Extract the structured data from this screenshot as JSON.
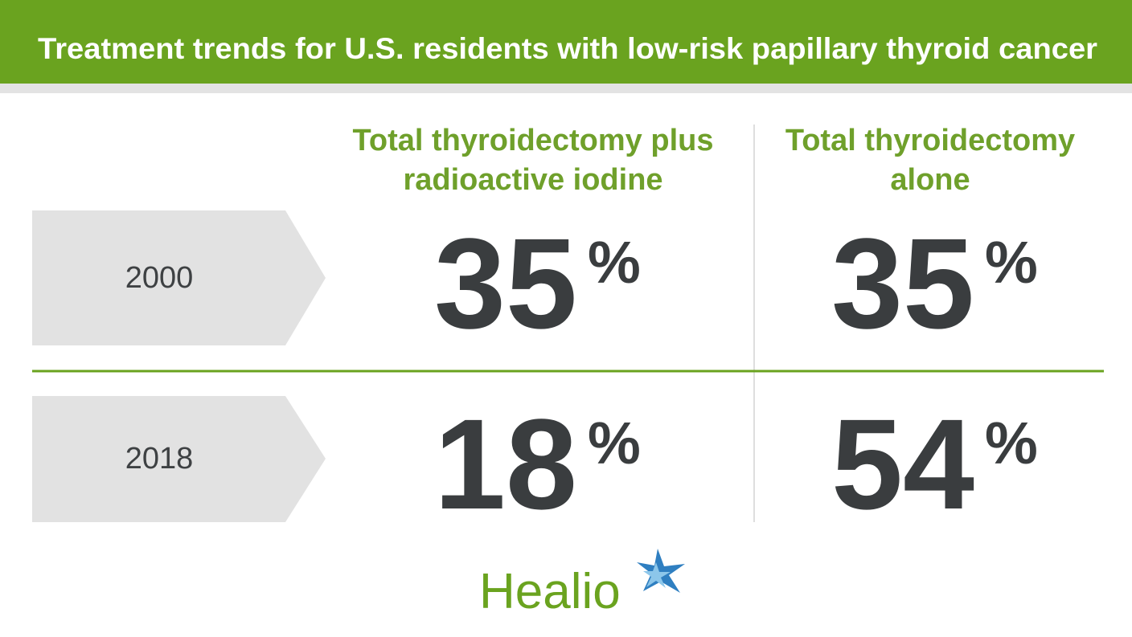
{
  "header": {
    "title": "Treatment trends for U.S. residents with low-risk papillary thyroid cancer"
  },
  "table": {
    "columns": [
      {
        "lines": [
          "Total thyroidectomy plus",
          "radioactive iodine"
        ]
      },
      {
        "lines": [
          "Total thyroidectomy",
          "alone"
        ]
      }
    ],
    "rows": [
      {
        "label": "2000",
        "cells": [
          {
            "value": 35,
            "suffix": "%"
          },
          {
            "value": 35,
            "suffix": "%"
          }
        ]
      },
      {
        "label": "2018",
        "cells": [
          {
            "value": 18,
            "suffix": "%"
          },
          {
            "value": 54,
            "suffix": "%"
          }
        ]
      }
    ]
  },
  "logo": {
    "text": "Healio"
  }
}
